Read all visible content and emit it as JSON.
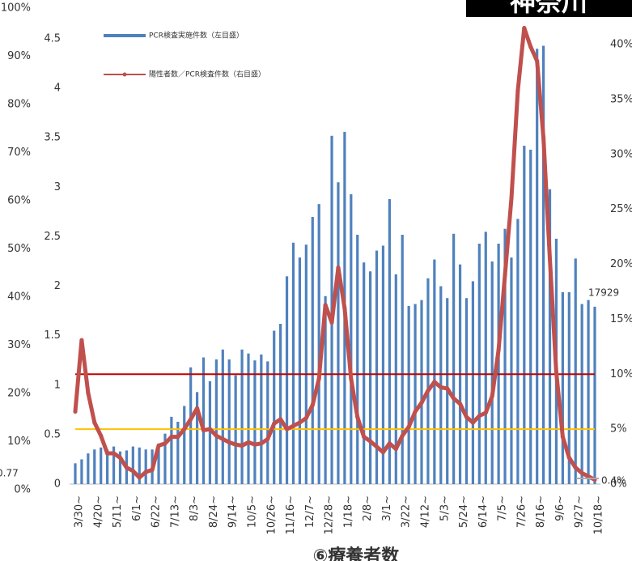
{
  "chart_data": {
    "type": "bar_line",
    "title": "⑥療養者数",
    "badge": "神奈川",
    "categories": [
      "3/30~",
      null,
      null,
      "4/20~",
      null,
      null,
      "5/11~",
      null,
      null,
      "6/1~",
      null,
      null,
      "6/22~",
      null,
      null,
      "7/13~",
      null,
      null,
      "8/3~",
      null,
      null,
      "8/24~",
      null,
      null,
      "9/14~",
      null,
      null,
      "10/5~",
      null,
      null,
      "10/26~",
      null,
      null,
      "11/16~",
      null,
      null,
      "12/7~",
      null,
      null,
      "12/28~",
      null,
      null,
      "1/18~",
      null,
      null,
      "2/8~",
      null,
      null,
      "3/1~",
      null,
      null,
      "3/22~",
      null,
      null,
      "4/12~",
      null,
      null,
      "5/3~",
      null,
      null,
      "5/24~",
      null,
      null,
      "6/14~",
      null,
      null,
      "7/5~",
      null,
      null,
      "7/26~",
      null,
      null,
      "8/16~",
      null,
      null,
      "9/6~",
      null,
      null,
      "9/27~",
      null,
      null,
      "10/18~"
    ],
    "series": [
      {
        "name": "PCR検査実施件数（左目盛）",
        "color": "#4f81bd",
        "axis": "y",
        "values": [
          0.21,
          0.25,
          0.31,
          0.35,
          0.37,
          0.35,
          0.38,
          0.33,
          0.34,
          0.38,
          0.37,
          0.35,
          0.35,
          0.41,
          0.51,
          0.68,
          0.63,
          0.79,
          1.18,
          0.93,
          1.28,
          1.04,
          1.26,
          1.36,
          1.26,
          1.1,
          1.36,
          1.32,
          1.25,
          1.31,
          1.24,
          1.55,
          1.62,
          2.1,
          2.44,
          2.29,
          2.42,
          2.7,
          2.83,
          1.9,
          3.52,
          3.05,
          3.56,
          2.93,
          2.52,
          2.24,
          2.15,
          2.36,
          2.41,
          2.88,
          2.12,
          2.52,
          1.8,
          1.82,
          1.86,
          2.08,
          2.27,
          2.0,
          1.88,
          2.53,
          2.22,
          1.88,
          2.05,
          2.43,
          2.55,
          2.25,
          2.43,
          2.58,
          2.29,
          2.68,
          3.42,
          3.38,
          4.4,
          4.43,
          2.98,
          2.48,
          1.94,
          1.94,
          2.28,
          1.82,
          1.86,
          1.7929
        ]
      },
      {
        "name": "陽性者数／PCR検査件数（右目盛）",
        "color": "#c0504d",
        "axis": "y2",
        "values": [
          6.6,
          13.1,
          8.3,
          5.6,
          4.4,
          2.8,
          2.8,
          2.4,
          1.5,
          1.2,
          0.6,
          1.1,
          1.3,
          3.5,
          3.7,
          4.3,
          4.3,
          5.0,
          5.9,
          6.9,
          4.9,
          5.0,
          4.4,
          4.1,
          3.8,
          3.6,
          3.5,
          3.8,
          3.6,
          3.7,
          4.1,
          5.5,
          5.9,
          5.0,
          5.3,
          5.6,
          6.0,
          7.2,
          9.6,
          16.3,
          14.7,
          19.7,
          16.0,
          9.6,
          6.1,
          4.3,
          3.9,
          3.4,
          2.9,
          3.7,
          3.2,
          4.4,
          5.2,
          6.6,
          7.4,
          8.5,
          9.3,
          8.8,
          8.7,
          7.8,
          7.3,
          6.1,
          5.6,
          6.2,
          6.5,
          8.0,
          12.2,
          19.0,
          26.0,
          35.8,
          41.5,
          39.8,
          38.5,
          31.5,
          20.5,
          10.2,
          4.3,
          2.4,
          1.5,
          1.0,
          0.7,
          0.4
        ]
      }
    ],
    "reference_lines": [
      {
        "value": 10,
        "color": "#c00000"
      },
      {
        "value": 5,
        "color": "#ffc000"
      }
    ],
    "ylim": [
      0,
      4.5
    ],
    "yticks": [
      0,
      0.5,
      1,
      1.5,
      2,
      2.5,
      3,
      3.5,
      4,
      4.5
    ],
    "y2lim": [
      0,
      40
    ],
    "y2ticks": [
      {
        "value": 0,
        "label": "0%"
      },
      {
        "value": 5,
        "label": "5%"
      },
      {
        "value": 10,
        "label": "10%"
      },
      {
        "value": 15,
        "label": "15%"
      },
      {
        "value": 20,
        "label": "20%"
      },
      {
        "value": 25,
        "label": "25%"
      },
      {
        "value": 30,
        "label": "30%"
      },
      {
        "value": 35,
        "label": "35%"
      },
      {
        "value": 40,
        "label": "40%"
      }
    ],
    "y3lim": [
      0,
      100
    ],
    "y3ticks": [
      {
        "value": 0,
        "label": "0%"
      },
      {
        "value": 10,
        "label": "10%"
      },
      {
        "value": 20,
        "label": "20%"
      },
      {
        "value": 30,
        "label": "30%"
      },
      {
        "value": 40,
        "label": "40%"
      },
      {
        "value": 50,
        "label": "50%"
      },
      {
        "value": 60,
        "label": "60%"
      },
      {
        "value": 70,
        "label": "70%"
      },
      {
        "value": 80,
        "label": "80%"
      },
      {
        "value": 90,
        "label": "90%"
      },
      {
        "value": 100,
        "label": "100%"
      }
    ],
    "annotations": [
      {
        "text": "17929"
      },
      {
        "text": "0.4%"
      },
      {
        "text": "0.77"
      }
    ]
  }
}
